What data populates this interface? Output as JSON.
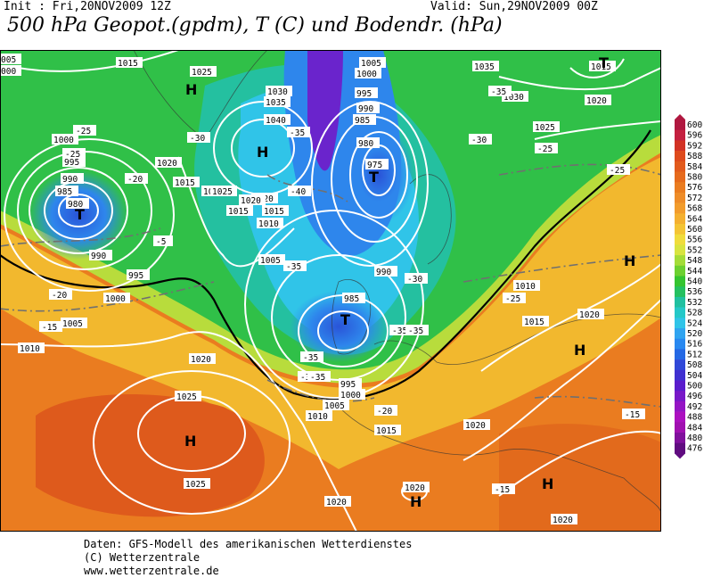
{
  "header": {
    "init": "Init : Fri,20NOV2009 12Z",
    "valid": "Valid: Sun,29NOV2009 00Z",
    "title": "500 hPa Geopot.(gpdm), T (C) und Bodendr. (hPa)"
  },
  "footer": {
    "line1": "Daten: GFS-Modell des amerikanischen Wetterdienstes",
    "line2": "(C) Wetterzentrale",
    "line3": "www.wetterzentrale.de"
  },
  "scale": {
    "labels": [
      "600",
      "596",
      "592",
      "588",
      "584",
      "580",
      "576",
      "572",
      "568",
      "564",
      "560",
      "556",
      "552",
      "548",
      "544",
      "540",
      "536",
      "532",
      "528",
      "524",
      "520",
      "516",
      "512",
      "508",
      "504",
      "500",
      "496",
      "492",
      "488",
      "484",
      "480",
      "476"
    ],
    "colors": [
      "#b01840",
      "#c42040",
      "#d23224",
      "#de4a1c",
      "#e25a1c",
      "#e66a1c",
      "#ea7c20",
      "#ee8c28",
      "#f29c2c",
      "#f4b030",
      "#f4c434",
      "#f0dc3c",
      "#d8e440",
      "#a4dc38",
      "#6cd030",
      "#34c430",
      "#24c060",
      "#20c0a0",
      "#24c8c8",
      "#30c4e8",
      "#30a4f0",
      "#2888f0",
      "#2468e4",
      "#3048d8",
      "#4030d0",
      "#5a1ccc",
      "#7818c8",
      "#9414c4",
      "#ac10c0",
      "#a010b0",
      "#80109c",
      "#600c80"
    ]
  },
  "map": {
    "surface_pressure_labels": [
      {
        "text": "1015"
      },
      {
        "text": "1025"
      },
      {
        "text": "1030"
      },
      {
        "text": "1035"
      },
      {
        "text": "1040"
      },
      {
        "text": "1005"
      },
      {
        "text": "1000"
      },
      {
        "text": "995"
      },
      {
        "text": "990"
      },
      {
        "text": "985"
      },
      {
        "text": "980"
      },
      {
        "text": "975"
      },
      {
        "text": "1035"
      },
      {
        "text": "1030"
      },
      {
        "text": "1015"
      },
      {
        "text": "1020"
      },
      {
        "text": "1025"
      },
      {
        "text": "1000"
      },
      {
        "text": "995"
      },
      {
        "text": "990"
      },
      {
        "text": "985"
      },
      {
        "text": "980"
      },
      {
        "text": "1020"
      },
      {
        "text": "1015"
      },
      {
        "text": "990"
      },
      {
        "text": "995"
      },
      {
        "text": "1000"
      },
      {
        "text": "1005"
      },
      {
        "text": "1010"
      },
      {
        "text": "1020"
      },
      {
        "text": "1025"
      },
      {
        "text": "1020"
      },
      {
        "text": "1015"
      },
      {
        "text": "1010"
      },
      {
        "text": "1005"
      },
      {
        "text": "985"
      },
      {
        "text": "990"
      },
      {
        "text": "995"
      },
      {
        "text": "1000"
      },
      {
        "text": "1005"
      },
      {
        "text": "1010"
      },
      {
        "text": "1015"
      },
      {
        "text": "1020"
      },
      {
        "text": "1025"
      },
      {
        "text": "1020"
      },
      {
        "text": "1020"
      },
      {
        "text": "1020"
      },
      {
        "text": "1015"
      },
      {
        "text": "1010"
      },
      {
        "text": "1020"
      },
      {
        "text": "1020"
      },
      {
        "text": "005"
      },
      {
        "text": "000"
      },
      {
        "text": "1015"
      },
      {
        "text": "1020"
      },
      {
        "text": "1025"
      }
    ],
    "temperature_labels": [
      {
        "text": "-25"
      },
      {
        "text": "-25"
      },
      {
        "text": "-20"
      },
      {
        "text": "-5"
      },
      {
        "text": "-20"
      },
      {
        "text": "-15"
      },
      {
        "text": "-30"
      },
      {
        "text": "-35"
      },
      {
        "text": "-40"
      },
      {
        "text": "-35"
      },
      {
        "text": "-35"
      },
      {
        "text": "-35"
      },
      {
        "text": "-30"
      },
      {
        "text": "-35"
      },
      {
        "text": "-30"
      },
      {
        "text": "-30"
      },
      {
        "text": "-25"
      },
      {
        "text": "-25"
      },
      {
        "text": "-25"
      },
      {
        "text": "-20"
      },
      {
        "text": "-15"
      },
      {
        "text": "-15"
      },
      {
        "text": "-35"
      },
      {
        "text": "-35"
      }
    ],
    "pressure_centers": [
      {
        "type": "H"
      },
      {
        "type": "H"
      },
      {
        "type": "T"
      },
      {
        "type": "T"
      },
      {
        "type": "T"
      },
      {
        "type": "H"
      },
      {
        "type": "H"
      },
      {
        "type": "H"
      },
      {
        "type": "H"
      },
      {
        "type": "T"
      },
      {
        "type": "H"
      }
    ]
  }
}
